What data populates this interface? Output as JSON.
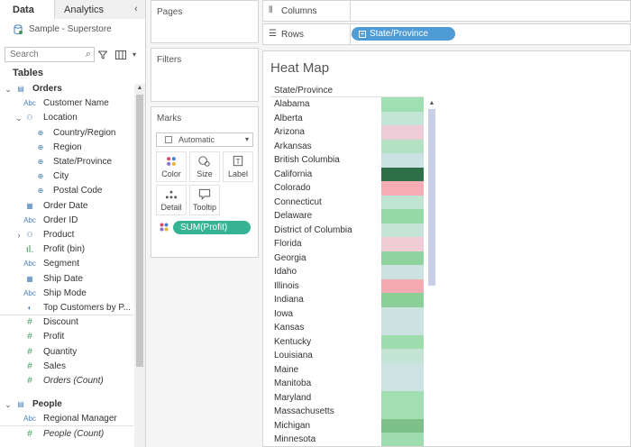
{
  "data_pane": {
    "tabs": [
      {
        "label": "Data"
      },
      {
        "label": "Analytics"
      }
    ],
    "datasource": "Sample - Superstore",
    "search_placeholder": "Search",
    "tables_label": "Tables",
    "fields": [
      {
        "label": "Orders",
        "kind": "table",
        "depth": 0,
        "expander": "⌄"
      },
      {
        "label": "Customer Name",
        "kind": "abc",
        "depth": 1
      },
      {
        "label": "Location",
        "kind": "hier",
        "depth": 1,
        "expander": "⌄"
      },
      {
        "label": "Country/Region",
        "kind": "geo",
        "depth": 2
      },
      {
        "label": "Region",
        "kind": "geo",
        "depth": 2
      },
      {
        "label": "State/Province",
        "kind": "geo",
        "depth": 2
      },
      {
        "label": "City",
        "kind": "geo",
        "depth": 2
      },
      {
        "label": "Postal Code",
        "kind": "geo",
        "depth": 2
      },
      {
        "label": "Order Date",
        "kind": "date",
        "depth": 1
      },
      {
        "label": "Order ID",
        "kind": "abc",
        "depth": 1
      },
      {
        "label": "Product",
        "kind": "hier",
        "depth": 1,
        "expander": "›"
      },
      {
        "label": "Profit (bin)",
        "kind": "bin",
        "depth": 1
      },
      {
        "label": "Segment",
        "kind": "abc",
        "depth": 1
      },
      {
        "label": "Ship Date",
        "kind": "date",
        "depth": 1
      },
      {
        "label": "Ship Mode",
        "kind": "abc",
        "depth": 1
      },
      {
        "label": "Top Customers by P...",
        "kind": "set",
        "depth": 1,
        "sep": true
      },
      {
        "label": "Discount",
        "kind": "measure",
        "depth": 1
      },
      {
        "label": "Profit",
        "kind": "measure",
        "depth": 1
      },
      {
        "label": "Quantity",
        "kind": "measure",
        "depth": 1
      },
      {
        "label": "Sales",
        "kind": "measure",
        "depth": 1
      },
      {
        "label": "Orders (Count)",
        "kind": "measure",
        "depth": 1,
        "italic": true
      },
      {
        "label": "People",
        "kind": "table",
        "depth": 0,
        "expander": "⌄",
        "gap": true
      },
      {
        "label": "Regional Manager",
        "kind": "abc",
        "depth": 1,
        "sep": true
      },
      {
        "label": "People (Count)",
        "kind": "measure",
        "depth": 1,
        "italic": true
      }
    ]
  },
  "cards": {
    "pages": "Pages",
    "filters": "Filters",
    "marks": "Marks",
    "mark_type": "Automatic",
    "mark_buttons": [
      {
        "label": "Color",
        "icon": "color-icon"
      },
      {
        "label": "Size",
        "icon": "size-icon"
      },
      {
        "label": "Label",
        "icon": "label-icon"
      },
      {
        "label": "Detail",
        "icon": "detail-icon"
      },
      {
        "label": "Tooltip",
        "icon": "tooltip-icon"
      }
    ],
    "color_pill": "SUM(Profit)"
  },
  "shelves": {
    "columns_label": "Columns",
    "rows_label": "Rows",
    "rows_pill": "State/Province"
  },
  "viz": {
    "title": "Heat Map",
    "row_header": "State/Province",
    "rows": [
      {
        "state": "Alabama",
        "color": "#9fdfb1"
      },
      {
        "state": "Alberta",
        "color": "#c3e5d5"
      },
      {
        "state": "Arizona",
        "color": "#edccd7"
      },
      {
        "state": "Arkansas",
        "color": "#b3e1c3"
      },
      {
        "state": "British Columbia",
        "color": "#cbe2e2"
      },
      {
        "state": "California",
        "color": "#2e6f4a"
      },
      {
        "state": "Colorado",
        "color": "#f6adb5"
      },
      {
        "state": "Connecticut",
        "color": "#bfe4d1"
      },
      {
        "state": "Delaware",
        "color": "#94d9a6"
      },
      {
        "state": "District of Columbia",
        "color": "#c7e4d9"
      },
      {
        "state": "Florida",
        "color": "#efccd6"
      },
      {
        "state": "Georgia",
        "color": "#8ed3a0"
      },
      {
        "state": "Idaho",
        "color": "#cbe2e1"
      },
      {
        "state": "Illinois",
        "color": "#f5a9b1"
      },
      {
        "state": "Indiana",
        "color": "#89d097"
      },
      {
        "state": "Iowa",
        "color": "#cbe2e0"
      },
      {
        "state": "Kansas",
        "color": "#cbe2e0"
      },
      {
        "state": "Kentucky",
        "color": "#9cdcad"
      },
      {
        "state": "Louisiana",
        "color": "#c3e3d4"
      },
      {
        "state": "Maine",
        "color": "#cce2e3"
      },
      {
        "state": "Manitoba",
        "color": "#cce2e3"
      },
      {
        "state": "Maryland",
        "color": "#a3deb3"
      },
      {
        "state": "Massachusetts",
        "color": "#a3deb3"
      },
      {
        "state": "Michigan",
        "color": "#7ec08a"
      },
      {
        "state": "Minnesota",
        "color": "#9fdcaf"
      }
    ]
  }
}
